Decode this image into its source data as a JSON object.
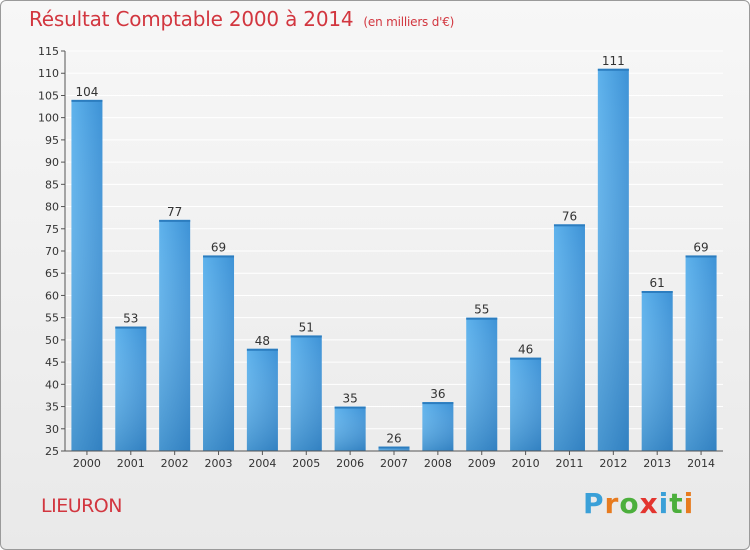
{
  "header": {
    "title": "Résultat Comptable 2000 à 2014",
    "unit": "(en milliers d'€)"
  },
  "footer": {
    "commune": "LIEURON",
    "logo_text": "Proxiti"
  },
  "colors": {
    "title": "#d2363f",
    "bar_light": "#5aaee8",
    "bar_dark": "#2a7fc1",
    "grid": "#ffffff",
    "logo": [
      "#3aa0d8",
      "#e77b1f",
      "#4caf3c",
      "#e3352f",
      "#3aa0d8",
      "#4caf3c",
      "#e77b1f"
    ]
  },
  "chart_data": {
    "type": "bar",
    "categories": [
      "2000",
      "2001",
      "2002",
      "2003",
      "2004",
      "2005",
      "2006",
      "2007",
      "2008",
      "2009",
      "2010",
      "2011",
      "2012",
      "2013",
      "2014"
    ],
    "values": [
      104,
      53,
      77,
      69,
      48,
      51,
      35,
      26,
      36,
      55,
      46,
      76,
      111,
      61,
      69
    ],
    "ylim": [
      25,
      115
    ],
    "ytick_step": 5,
    "grid": true,
    "xlabel": "",
    "ylabel": ""
  }
}
